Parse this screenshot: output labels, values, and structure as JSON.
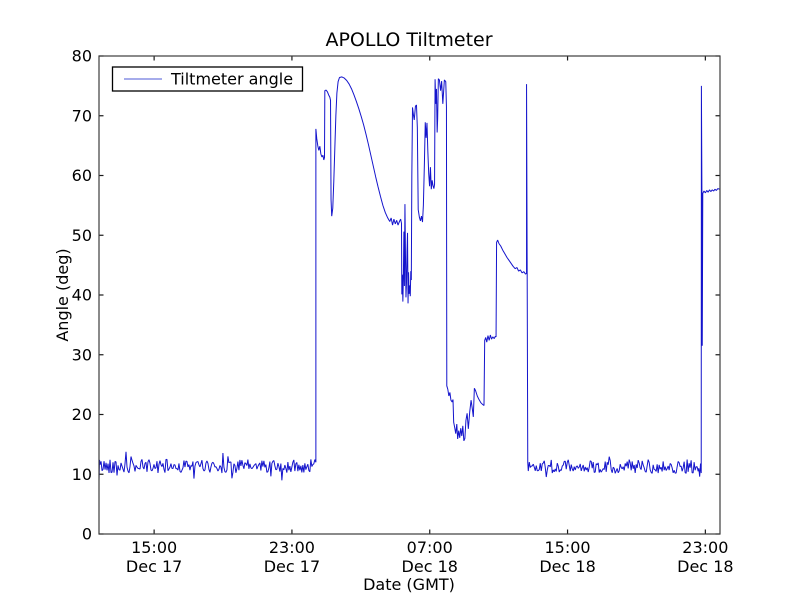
{
  "chart_data": {
    "type": "line",
    "title": "APOLLO Tiltmeter",
    "xlabel": "Date (GMT)",
    "ylabel": "Angle (deg)",
    "x_unit": "hours since Dec 17 00:00 GMT",
    "xlim_hours": [
      11.8,
      47.85
    ],
    "ylim": [
      0,
      80
    ],
    "grid": false,
    "frame_color": "#3c3c3c",
    "tick_color": "#1a1a1a",
    "line_color": "#1414cc",
    "legend_sample_color": "#9aa0e8",
    "background_color": "#ffffff",
    "legend": {
      "position": "upper left",
      "entries": [
        {
          "label": "Tiltmeter angle",
          "color": "#1414cc"
        }
      ]
    },
    "x_ticks": [
      {
        "hour": 15,
        "line1": "15:00",
        "line2": "Dec 17"
      },
      {
        "hour": 23,
        "line1": "23:00",
        "line2": "Dec 17"
      },
      {
        "hour": 31,
        "line1": "07:00",
        "line2": "Dec 18"
      },
      {
        "hour": 39,
        "line1": "15:00",
        "line2": "Dec 18"
      },
      {
        "hour": 47,
        "line1": "23:00",
        "line2": "Dec 18"
      }
    ],
    "y_ticks": [
      0,
      10,
      20,
      30,
      40,
      50,
      60,
      70,
      80
    ],
    "series_segments": [
      {
        "name": "start-stub",
        "mode": "points",
        "pts": [
          [
            11.8,
            9.0
          ],
          [
            11.83,
            12.4
          ]
        ]
      },
      {
        "name": "quiet-band-1",
        "mode": "noise",
        "from": 11.86,
        "to": 24.35,
        "step": 0.058,
        "base": 11.35,
        "amp": 1.15,
        "spike_prob": 0.1,
        "spike_amp": 1.6,
        "min": 8.6,
        "max": 14.0,
        "seed": 42
      },
      {
        "name": "main-disturbance",
        "mode": "points",
        "pts": [
          [
            24.39,
            12.0
          ],
          [
            24.39,
            67.8
          ],
          [
            24.44,
            66.2
          ],
          [
            24.5,
            65.0
          ],
          [
            24.56,
            64.2
          ],
          [
            24.62,
            64.9
          ],
          [
            24.68,
            63.6
          ],
          [
            24.74,
            63.1
          ],
          [
            24.8,
            63.4
          ],
          [
            24.85,
            62.6
          ],
          [
            24.89,
            63.0
          ],
          [
            24.91,
            74.2
          ],
          [
            24.98,
            74.3
          ],
          [
            25.06,
            74.0
          ],
          [
            25.13,
            73.5
          ],
          [
            25.2,
            73.1
          ],
          [
            25.24,
            72.6
          ],
          [
            25.27,
            56.0
          ],
          [
            25.31,
            53.2
          ],
          [
            25.37,
            54.5
          ],
          [
            25.43,
            59.0
          ],
          [
            25.49,
            64.5
          ],
          [
            25.55,
            70.0
          ],
          [
            25.61,
            73.8
          ],
          [
            25.68,
            75.7
          ],
          [
            25.76,
            76.4
          ],
          [
            25.9,
            76.5
          ],
          [
            26.04,
            76.3
          ],
          [
            26.18,
            75.9
          ],
          [
            26.32,
            75.3
          ],
          [
            26.46,
            74.5
          ],
          [
            26.6,
            73.5
          ],
          [
            26.74,
            72.4
          ],
          [
            26.88,
            71.2
          ],
          [
            27.02,
            69.9
          ],
          [
            27.16,
            68.5
          ],
          [
            27.3,
            66.9
          ],
          [
            27.44,
            65.2
          ],
          [
            27.58,
            63.4
          ],
          [
            27.72,
            61.6
          ],
          [
            27.86,
            59.8
          ],
          [
            28.0,
            58.1
          ],
          [
            28.14,
            56.5
          ],
          [
            28.28,
            55.0
          ],
          [
            28.42,
            53.8
          ],
          [
            28.56,
            52.9
          ],
          [
            28.68,
            52.3
          ],
          [
            28.76,
            52.9
          ],
          [
            28.84,
            51.7
          ],
          [
            28.92,
            52.7
          ],
          [
            29.0,
            51.9
          ],
          [
            29.08,
            52.5
          ],
          [
            29.16,
            51.7
          ],
          [
            29.24,
            52.3
          ],
          [
            29.31,
            52.7
          ],
          [
            29.36,
            52.0
          ],
          [
            29.38,
            40.1
          ],
          [
            29.41,
            43.4
          ],
          [
            29.44,
            38.9
          ],
          [
            29.47,
            43.0
          ],
          [
            29.5,
            50.6
          ],
          [
            29.53,
            41.5
          ],
          [
            29.56,
            55.2
          ],
          [
            29.59,
            47.0
          ],
          [
            29.62,
            39.6
          ],
          [
            29.65,
            42.0
          ],
          [
            29.68,
            47.2
          ],
          [
            29.71,
            50.4
          ],
          [
            29.74,
            38.6
          ],
          [
            29.77,
            43.8
          ],
          [
            29.8,
            40.2
          ],
          [
            29.84,
            41.6
          ],
          [
            29.87,
            39.8
          ],
          [
            29.9,
            44.0
          ],
          [
            29.93,
            42.5
          ],
          [
            29.96,
            60.0
          ],
          [
            30.0,
            71.4
          ],
          [
            30.05,
            70.2
          ],
          [
            30.1,
            69.3
          ],
          [
            30.17,
            71.6
          ],
          [
            30.23,
            71.8
          ],
          [
            30.28,
            68.0
          ],
          [
            30.33,
            54.3
          ],
          [
            30.4,
            53.0
          ],
          [
            30.46,
            52.4
          ],
          [
            30.52,
            53.2
          ],
          [
            30.58,
            52.2
          ],
          [
            30.63,
            55.0
          ],
          [
            30.69,
            62.0
          ],
          [
            30.74,
            68.9
          ],
          [
            30.79,
            66.3
          ],
          [
            30.84,
            68.8
          ],
          [
            30.89,
            64.0
          ],
          [
            30.94,
            60.3
          ],
          [
            30.99,
            58.2
          ],
          [
            31.04,
            61.4
          ],
          [
            31.09,
            57.7
          ],
          [
            31.14,
            59.2
          ],
          [
            31.19,
            58.3
          ],
          [
            31.24,
            57.8
          ],
          [
            31.28,
            58.5
          ],
          [
            31.31,
            76.1
          ],
          [
            31.35,
            72.0
          ],
          [
            31.39,
            74.5
          ],
          [
            31.43,
            67.2
          ],
          [
            31.46,
            69.5
          ],
          [
            31.5,
            76.2
          ],
          [
            31.56,
            76.0
          ],
          [
            31.63,
            74.2
          ],
          [
            31.69,
            75.8
          ],
          [
            31.76,
            72.0
          ],
          [
            31.85,
            76.0
          ],
          [
            31.93,
            75.7
          ],
          [
            31.97,
            71.5
          ],
          [
            31.99,
            24.8
          ]
        ]
      },
      {
        "name": "low-recovery",
        "mode": "points",
        "pts": [
          [
            32.05,
            24.2
          ],
          [
            32.11,
            23.1
          ],
          [
            32.17,
            23.7
          ],
          [
            32.23,
            22.4
          ],
          [
            32.3,
            22.1
          ],
          [
            32.35,
            22.5
          ],
          [
            32.39,
            18.7
          ],
          [
            32.45,
            17.8
          ],
          [
            32.51,
            16.8
          ],
          [
            32.57,
            18.4
          ],
          [
            32.62,
            15.9
          ],
          [
            32.68,
            17.3
          ],
          [
            32.74,
            16.1
          ],
          [
            32.8,
            17.7
          ],
          [
            32.86,
            16.4
          ],
          [
            32.92,
            18.1
          ],
          [
            32.98,
            15.6
          ],
          [
            33.04,
            16.0
          ],
          [
            33.1,
            19.0
          ],
          [
            33.17,
            20.2
          ],
          [
            33.24,
            17.6
          ],
          [
            33.32,
            20.4
          ],
          [
            33.4,
            22.4
          ],
          [
            33.47,
            21.0
          ],
          [
            33.53,
            19.6
          ],
          [
            33.59,
            24.4
          ],
          [
            33.66,
            24.0
          ],
          [
            33.76,
            23.1
          ],
          [
            33.86,
            22.5
          ],
          [
            33.96,
            22.0
          ],
          [
            34.06,
            21.7
          ],
          [
            34.15,
            21.5
          ],
          [
            34.19,
            32.4
          ],
          [
            34.25,
            32.9
          ],
          [
            34.31,
            32.1
          ],
          [
            34.38,
            33.2
          ],
          [
            34.45,
            32.4
          ],
          [
            34.52,
            33.3
          ],
          [
            34.59,
            32.6
          ],
          [
            34.66,
            33.0
          ],
          [
            34.74,
            32.7
          ],
          [
            34.81,
            33.1
          ],
          [
            34.85,
            33.0
          ]
        ]
      },
      {
        "name": "mid-plateau",
        "mode": "points",
        "pts": [
          [
            34.88,
            48.8
          ],
          [
            34.94,
            49.2
          ],
          [
            35.02,
            48.6
          ],
          [
            35.12,
            48.2
          ],
          [
            35.24,
            47.5
          ],
          [
            35.36,
            46.9
          ],
          [
            35.48,
            46.3
          ],
          [
            35.6,
            45.8
          ],
          [
            35.72,
            45.3
          ],
          [
            35.84,
            44.8
          ],
          [
            35.96,
            44.4
          ],
          [
            36.06,
            44.6
          ],
          [
            36.16,
            44.0
          ],
          [
            36.26,
            44.2
          ],
          [
            36.36,
            43.7
          ],
          [
            36.46,
            43.9
          ],
          [
            36.56,
            43.5
          ]
        ]
      },
      {
        "name": "tall-spike",
        "mode": "points",
        "pts": [
          [
            36.62,
            43.6
          ],
          [
            36.62,
            75.3
          ],
          [
            36.66,
            40.0
          ],
          [
            36.69,
            12.0
          ]
        ]
      },
      {
        "name": "quiet-band-2",
        "mode": "noise",
        "from": 36.72,
        "to": 46.58,
        "step": 0.058,
        "base": 11.3,
        "amp": 1.2,
        "spike_prob": 0.1,
        "spike_amp": 1.7,
        "min": 8.6,
        "max": 13.8,
        "seed": 1337
      },
      {
        "name": "final-step",
        "mode": "points",
        "pts": [
          [
            46.62,
            11.0
          ],
          [
            46.67,
            9.6
          ],
          [
            46.72,
            11.8
          ],
          [
            46.76,
            10.2
          ],
          [
            46.77,
            75.0
          ],
          [
            46.8,
            57.5
          ],
          [
            46.82,
            31.5
          ],
          [
            46.85,
            57.0
          ],
          [
            46.92,
            57.4
          ],
          [
            47.0,
            57.1
          ],
          [
            47.08,
            57.5
          ],
          [
            47.16,
            57.2
          ],
          [
            47.24,
            57.6
          ],
          [
            47.32,
            57.3
          ],
          [
            47.4,
            57.6
          ],
          [
            47.48,
            57.4
          ],
          [
            47.56,
            57.7
          ],
          [
            47.64,
            57.5
          ],
          [
            47.72,
            57.8
          ],
          [
            47.85,
            57.7
          ]
        ]
      }
    ]
  }
}
